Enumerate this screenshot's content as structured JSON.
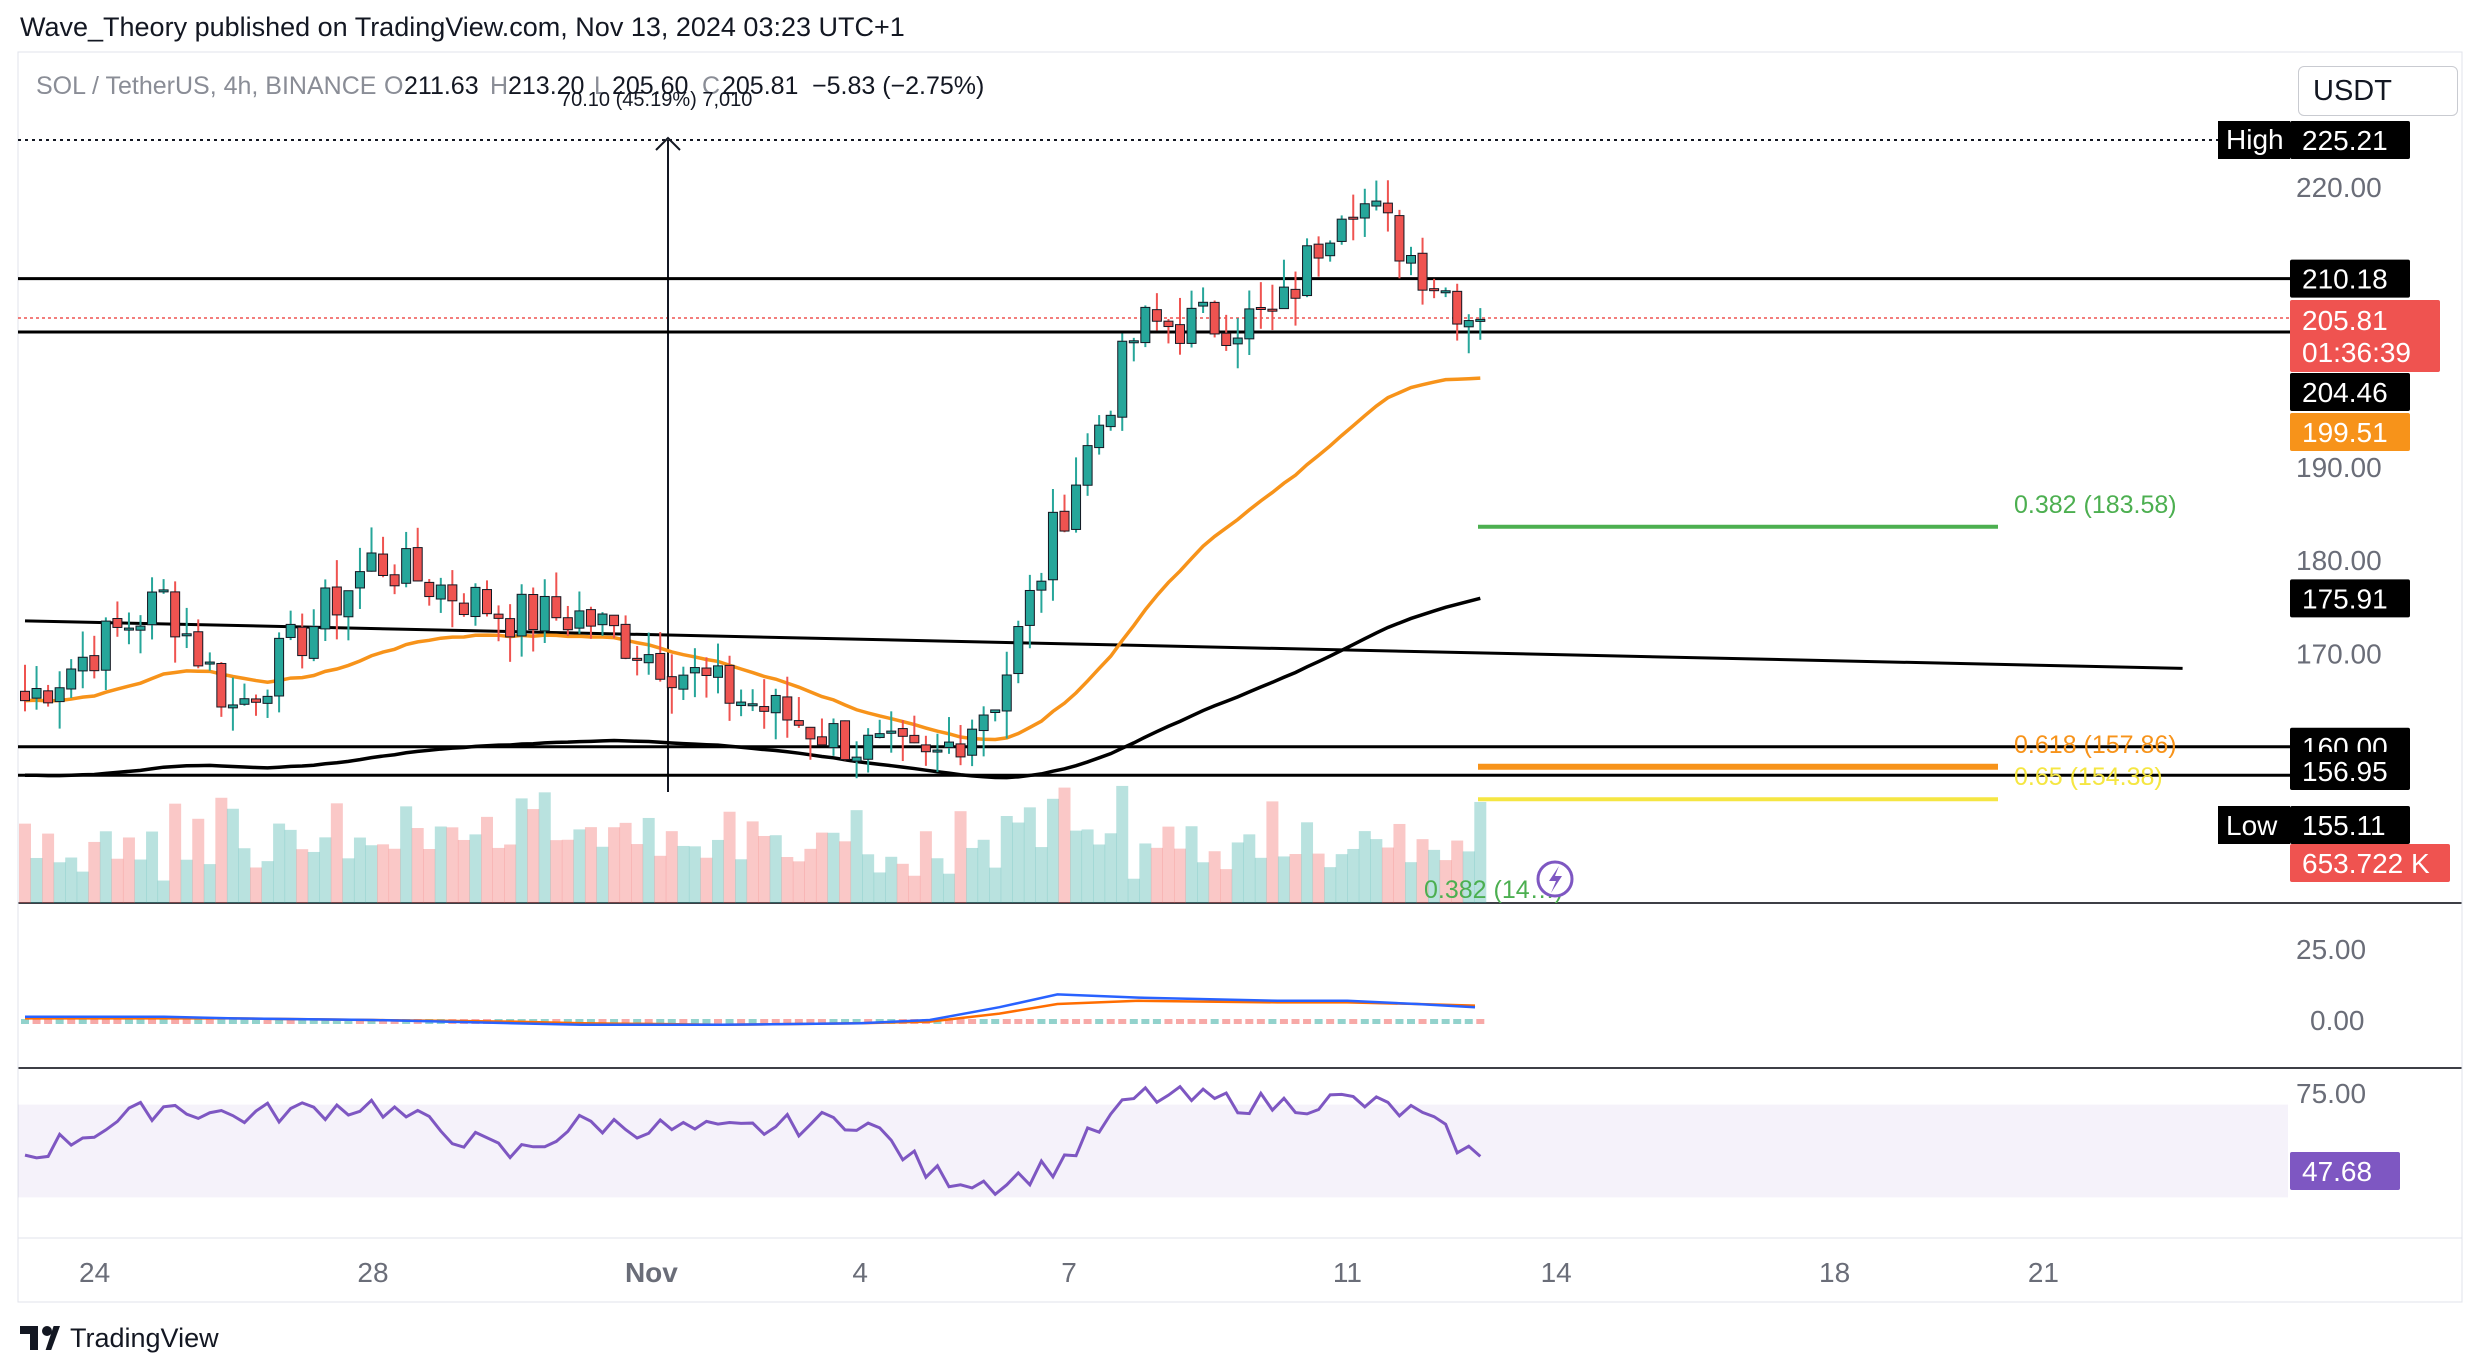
{
  "header": {
    "publisher": "Wave_Theory published on TradingView.com, Nov 13, 2024 03:23 UTC+1",
    "symbol": "SOL / TetherUS, 4h, BINANCE",
    "o_label": "O",
    "o_value": "211.63",
    "h_label": "H",
    "h_value": "213.20",
    "l_label": "L",
    "l_value": "205.60",
    "c_label": "C",
    "c_value": "205.81",
    "change": "−5.83 (−2.75%)",
    "measure": "70.10 (45.19%) 7,010"
  },
  "currency_button": "USDT",
  "footer": {
    "brand": "TradingView"
  },
  "colors": {
    "up": "#26a69a",
    "down": "#ef5350",
    "ema50": "#f7931a",
    "ema200": "#000000",
    "fib382": "#4caf50",
    "fib618": "#f7931a",
    "fib65": "#f5e642",
    "rsi": "#7e57c2",
    "macd": "#2962ff",
    "signal": "#ff6d00"
  },
  "chart_data": [
    {
      "type": "candlestick",
      "title": "SOL / TetherUS, 4h, BINANCE",
      "x_tick_labels": [
        "24",
        "28",
        "Nov",
        "4",
        "7",
        "11",
        "14",
        "18",
        "21"
      ],
      "y_tick_labels": [
        "220.00",
        "190.00",
        "180.00",
        "170.00"
      ],
      "ylim": [
        150,
        231
      ],
      "high": 225.21,
      "low": 155.11,
      "last_price": 205.81,
      "countdown": "01:36:39",
      "horizontal_levels": [
        210.18,
        204.46,
        160.0,
        156.95
      ],
      "ema50": {
        "value": 199.51
      },
      "ema200": {
        "value": 175.91
      },
      "descending_trendline_x": [
        "Oct 23",
        "Nov 23"
      ],
      "descending_trendline_y": [
        173.5,
        168.4
      ],
      "fibonacci": [
        {
          "label": "0.382 (183.58)",
          "value": 183.58
        },
        {
          "label": "0.618 (157.86)",
          "value": 157.86
        },
        {
          "label": "0.65 (154.38)",
          "value": 154.38
        },
        {
          "label": "0.382 (14…)",
          "value": 143
        }
      ],
      "volume_last": "653.722 K",
      "candles_x": [
        "Oct 23",
        "Oct 25",
        "Oct 26",
        "Oct 28",
        "Oct 30",
        "Oct 31",
        "Nov 2",
        "Nov 4",
        "Nov 5",
        "Nov 6",
        "Nov 6 20:00",
        "Nov 8",
        "Nov 10",
        "Nov 11",
        "Nov 12",
        "Nov 12 20:00"
      ],
      "candles_close": [
        165,
        176,
        164,
        180,
        174,
        174,
        166,
        160,
        158,
        166,
        184,
        205,
        206,
        220,
        212,
        205.81
      ],
      "price_labels": {
        "high_tag": "High",
        "high_value": "225.21",
        "lvl1": "210.18",
        "last": "205.81",
        "countdown": "01:36:39",
        "lvl2": "204.46",
        "ema50": "199.51",
        "ema200": "175.91",
        "lvl3": "160.00",
        "lvl4": "156.95",
        "low_tag": "Low",
        "low_value": "155.11",
        "volume": "653.722 K"
      }
    },
    {
      "type": "line",
      "title": "MACD",
      "y_tick_labels": [
        "25.00",
        "0.00"
      ],
      "series": [
        {
          "values": [
            1,
            1,
            0.5,
            0,
            -1,
            -1.5,
            -1.5,
            -1,
            0,
            4,
            8,
            7,
            6,
            6,
            5,
            4
          ]
        },
        {
          "values": [
            0.5,
            0.5,
            0.5,
            0,
            -0.5,
            -1,
            -1.5,
            -1,
            -0.5,
            2,
            5,
            6,
            5.5,
            5.5,
            5,
            4.5
          ]
        }
      ]
    },
    {
      "type": "line",
      "title": "RSI",
      "y_tick_labels": [
        "75.00"
      ],
      "last_value": "47.68",
      "band": [
        30,
        70
      ],
      "series": [
        {
          "values": [
            48,
            70,
            65,
            70,
            48,
            62,
            58,
            64,
            40,
            36,
            44,
            74,
            70,
            72,
            66,
            47.68
          ]
        }
      ]
    }
  ]
}
